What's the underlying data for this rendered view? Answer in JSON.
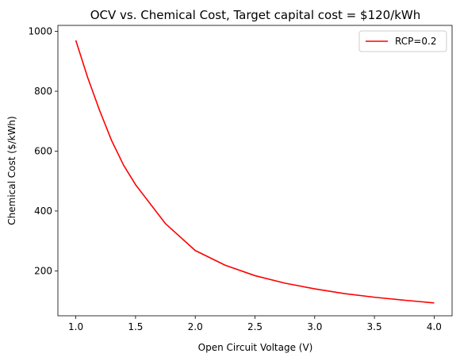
{
  "chart_data": {
    "type": "line",
    "title": "OCV vs. Chemical Cost, Target capital cost = $120/kWh",
    "xlabel": "Open Circuit Voltage (V)",
    "ylabel": "Chemical Cost ($/kWh)",
    "xlim": [
      0.85,
      4.15
    ],
    "ylim": [
      50,
      1020
    ],
    "xticks": [
      1.0,
      1.5,
      2.0,
      2.5,
      3.0,
      3.5,
      4.0
    ],
    "xtick_labels": [
      "1.0",
      "1.5",
      "2.0",
      "2.5",
      "3.0",
      "3.5",
      "4.0"
    ],
    "yticks": [
      200,
      400,
      600,
      800,
      1000
    ],
    "ytick_labels": [
      "200",
      "400",
      "600",
      "800",
      "1000"
    ],
    "grid": false,
    "legend_position": "top-right",
    "series": [
      {
        "name": "RCP=0.2",
        "color": "#ff0000",
        "x": [
          1.0,
          1.1,
          1.2,
          1.3,
          1.4,
          1.5,
          1.75,
          2.0,
          2.25,
          2.5,
          2.75,
          3.0,
          3.25,
          3.5,
          3.75,
          4.0
        ],
        "y": [
          970,
          845,
          735,
          635,
          553,
          488,
          358,
          268,
          219,
          184,
          159,
          140,
          124,
          112,
          102,
          93
        ]
      }
    ]
  }
}
